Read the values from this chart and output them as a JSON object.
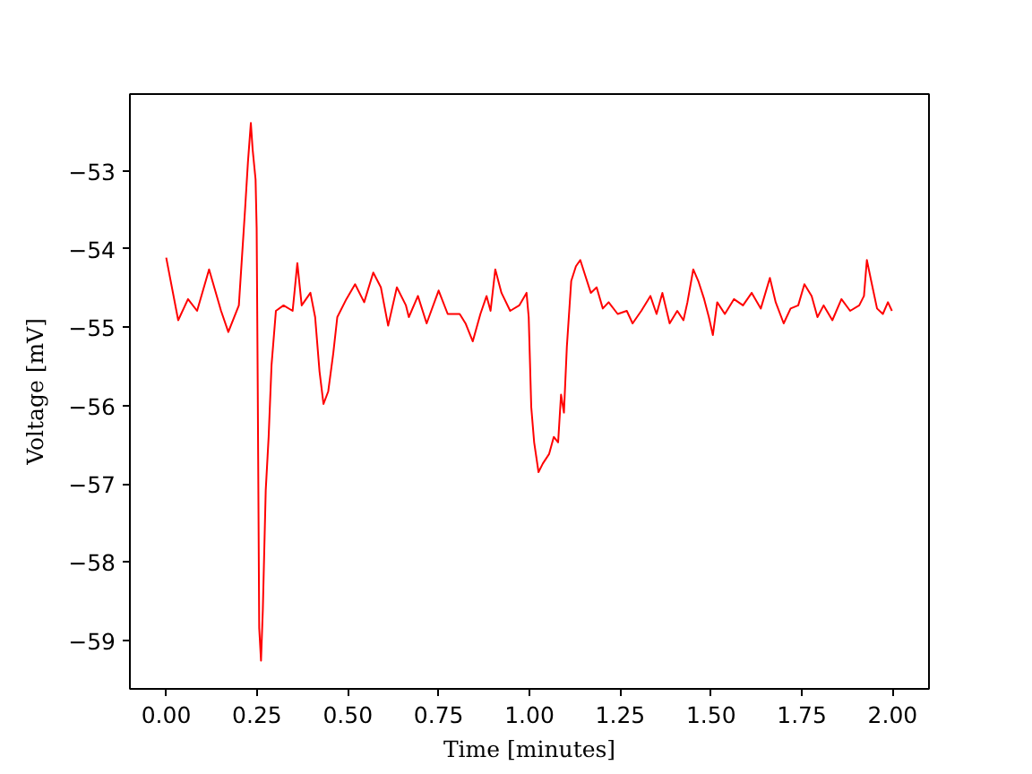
{
  "chart_data": {
    "type": "line",
    "xlabel": "Time [minutes]",
    "ylabel": "Voltage [mV]",
    "xlim": [
      -0.1,
      2.1
    ],
    "ylim": [
      -59.62,
      -52.02
    ],
    "xticks": [
      {
        "value": 0,
        "label": "0.00"
      },
      {
        "value": 0.25,
        "label": "0.25"
      },
      {
        "value": 0.5,
        "label": "0.50"
      },
      {
        "value": 0.75,
        "label": "0.75"
      },
      {
        "value": 1,
        "label": "1.00"
      },
      {
        "value": 1.25,
        "label": "1.25"
      },
      {
        "value": 1.5,
        "label": "1.50"
      },
      {
        "value": 1.75,
        "label": "1.75"
      },
      {
        "value": 2,
        "label": "2.00"
      }
    ],
    "yticks": [
      {
        "value": -59,
        "label": "−59"
      },
      {
        "value": -58,
        "label": "−58"
      },
      {
        "value": -57,
        "label": "−57"
      },
      {
        "value": -56,
        "label": "−56"
      },
      {
        "value": -55,
        "label": "−55"
      },
      {
        "value": -54,
        "label": "−54"
      },
      {
        "value": -53,
        "label": "−53"
      }
    ],
    "series": [
      {
        "color": "#ff0000",
        "x": [
          0.0,
          0.033,
          0.06,
          0.085,
          0.118,
          0.151,
          0.171,
          0.2,
          0.217,
          0.225,
          0.233,
          0.238,
          0.246,
          0.249,
          0.252,
          0.256,
          0.261,
          0.266,
          0.274,
          0.282,
          0.29,
          0.302,
          0.323,
          0.348,
          0.353,
          0.361,
          0.373,
          0.397,
          0.41,
          0.422,
          0.433,
          0.446,
          0.46,
          0.471,
          0.496,
          0.52,
          0.545,
          0.57,
          0.591,
          0.611,
          0.635,
          0.66,
          0.668,
          0.693,
          0.717,
          0.75,
          0.775,
          0.808,
          0.824,
          0.844,
          0.865,
          0.882,
          0.893,
          0.906,
          0.923,
          0.947,
          0.972,
          0.992,
          0.998,
          1.005,
          1.013,
          1.025,
          1.037,
          1.054,
          1.067,
          1.079,
          1.087,
          1.095,
          1.103,
          1.115,
          1.128,
          1.14,
          1.153,
          1.169,
          1.185,
          1.202,
          1.218,
          1.243,
          1.268,
          1.284,
          1.308,
          1.333,
          1.35,
          1.366,
          1.386,
          1.407,
          1.424,
          1.435,
          1.451,
          1.465,
          1.481,
          1.494,
          1.505,
          1.517,
          1.538,
          1.563,
          1.588,
          1.612,
          1.637,
          1.662,
          1.678,
          1.7,
          1.719,
          1.74,
          1.757,
          1.777,
          1.793,
          1.81,
          1.834,
          1.859,
          1.883,
          1.908,
          1.921,
          1.929,
          1.941,
          1.957,
          1.973,
          1.987,
          1.998
        ],
        "values": [
          -54.11,
          -54.91,
          -54.64,
          -54.79,
          -54.26,
          -54.79,
          -55.06,
          -54.72,
          -53.5,
          -52.89,
          -52.39,
          -52.73,
          -53.11,
          -53.73,
          -55.79,
          -58.84,
          -59.26,
          -58.61,
          -57.08,
          -56.4,
          -55.48,
          -54.79,
          -54.72,
          -54.79,
          -54.56,
          -54.18,
          -54.72,
          -54.56,
          -54.87,
          -55.56,
          -55.98,
          -55.82,
          -55.33,
          -54.87,
          -54.64,
          -54.45,
          -54.68,
          -54.3,
          -54.49,
          -54.98,
          -54.49,
          -54.72,
          -54.87,
          -54.6,
          -54.95,
          -54.53,
          -54.83,
          -54.83,
          -54.95,
          -55.18,
          -54.83,
          -54.6,
          -54.79,
          -54.26,
          -54.56,
          -54.79,
          -54.72,
          -54.56,
          -54.87,
          -56.02,
          -56.47,
          -56.85,
          -56.74,
          -56.62,
          -56.4,
          -56.47,
          -55.86,
          -56.09,
          -55.25,
          -54.41,
          -54.22,
          -54.14,
          -54.33,
          -54.56,
          -54.49,
          -54.76,
          -54.68,
          -54.83,
          -54.79,
          -54.95,
          -54.79,
          -54.6,
          -54.83,
          -54.56,
          -54.95,
          -54.79,
          -54.91,
          -54.68,
          -54.26,
          -54.41,
          -54.64,
          -54.87,
          -55.1,
          -54.68,
          -54.83,
          -54.64,
          -54.72,
          -54.56,
          -54.76,
          -54.37,
          -54.68,
          -54.95,
          -54.76,
          -54.72,
          -54.45,
          -54.6,
          -54.87,
          -54.72,
          -54.91,
          -54.64,
          -54.79,
          -54.72,
          -54.6,
          -54.14,
          -54.41,
          -54.76,
          -54.83,
          -54.68,
          -54.79
        ]
      }
    ]
  }
}
